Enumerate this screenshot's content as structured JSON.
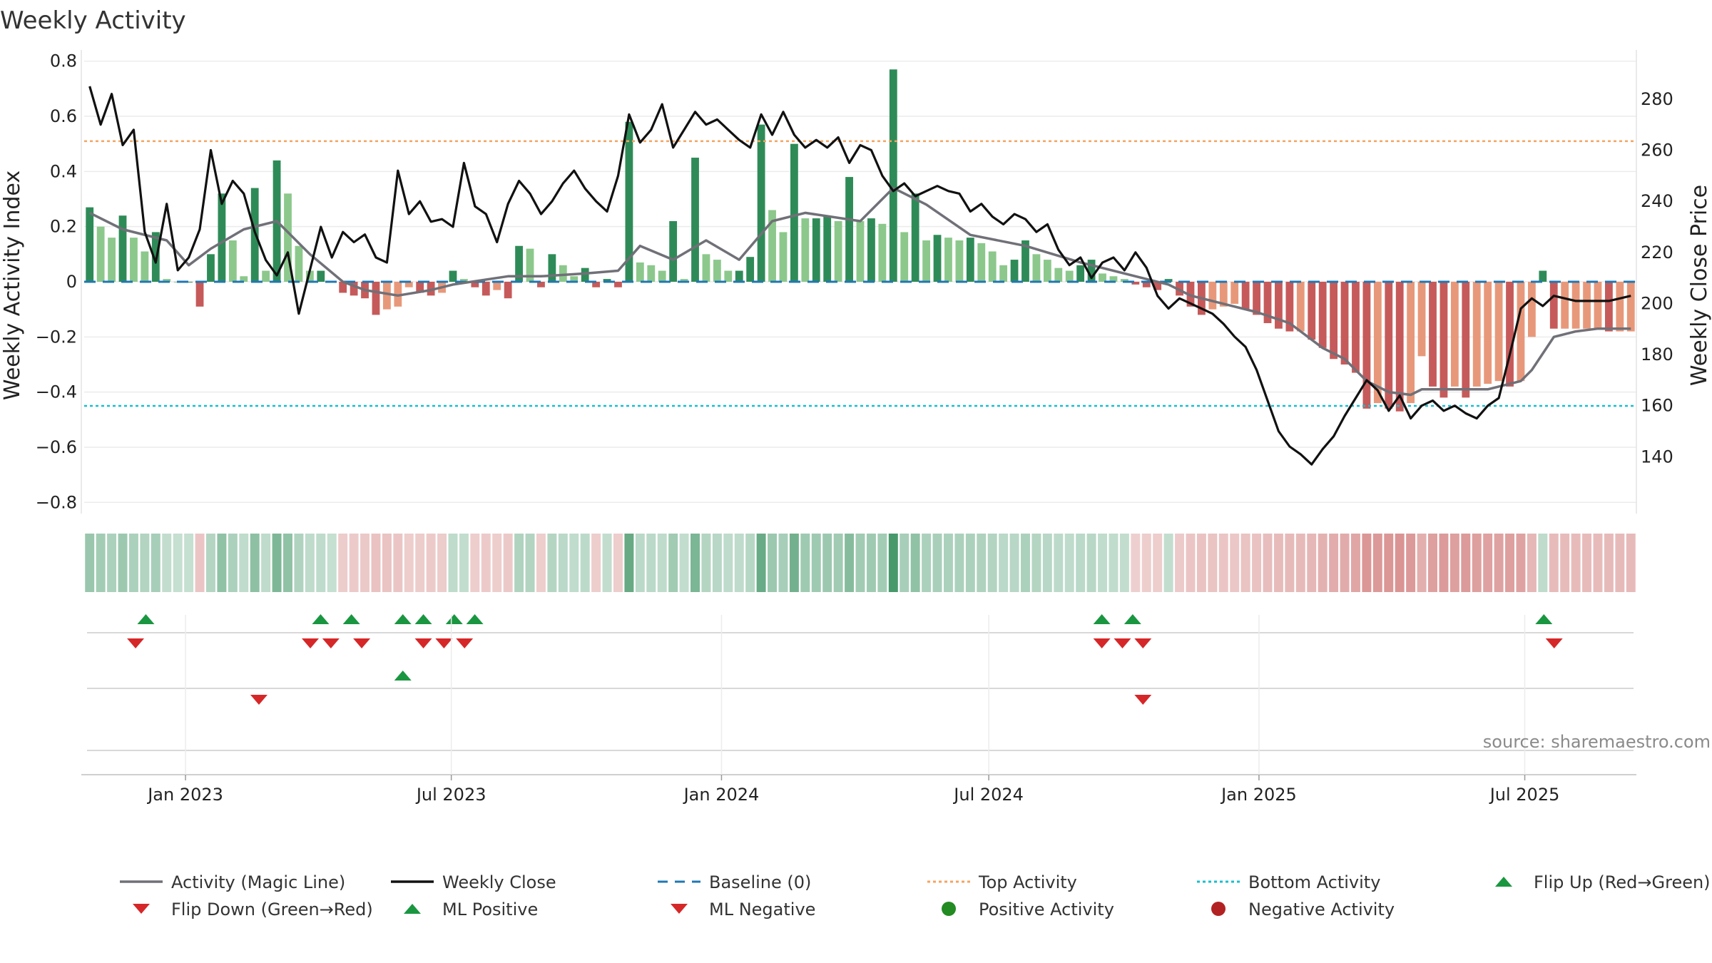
{
  "chart_data": {
    "type": "bar",
    "title": "Weekly Activity",
    "ylabel_left": "Weekly Activity Index",
    "ylabel_right": "Weekly Close Price",
    "x_range": [
      "2022-10-24",
      "2025-09-15"
    ],
    "left_ylim": [
      -0.82,
      0.82
    ],
    "left_ticks": [
      "0.8",
      "0.6",
      "0.4",
      "0.2",
      "0",
      "−0.2",
      "−0.4",
      "−0.6",
      "−0.8"
    ],
    "left_tick_values": [
      0.8,
      0.6,
      0.4,
      0.2,
      0,
      -0.2,
      -0.4,
      -0.6,
      -0.8
    ],
    "right_ylim": [
      120,
      297
    ],
    "right_ticks": [
      280,
      260,
      240,
      220,
      200,
      180,
      160,
      140
    ],
    "x_ticks": [
      {
        "label": "Jan 2023",
        "date": "2023-01-01"
      },
      {
        "label": "Jul 2023",
        "date": "2023-07-01"
      },
      {
        "label": "Jan 2024",
        "date": "2024-01-01"
      },
      {
        "label": "Jul 2024",
        "date": "2024-07-01"
      },
      {
        "label": "Jan 2025",
        "date": "2025-01-01"
      },
      {
        "label": "Jul 2025",
        "date": "2025-07-01"
      }
    ],
    "grid": true,
    "reference_lines": {
      "baseline": 0,
      "top_activity": 0.51,
      "bottom_activity": -0.45
    },
    "activity_anchors": [
      [
        0,
        0.27
      ],
      [
        1,
        0.2
      ],
      [
        2,
        0.16
      ],
      [
        3,
        0.24
      ],
      [
        4,
        0.16
      ],
      [
        5,
        0.11
      ],
      [
        6,
        0.18
      ],
      [
        7,
        0.01
      ],
      [
        8,
        0
      ],
      [
        9,
        0
      ],
      [
        10,
        -0.09
      ],
      [
        11,
        0.1
      ],
      [
        12,
        0.32
      ],
      [
        13,
        0.15
      ],
      [
        14,
        0.02
      ],
      [
        15,
        0.34
      ],
      [
        16,
        0.04
      ],
      [
        17,
        0.44
      ],
      [
        18,
        0.32
      ],
      [
        19,
        0.13
      ],
      [
        20,
        0.04
      ],
      [
        21,
        0.04
      ],
      [
        22,
        0
      ],
      [
        23,
        -0.04
      ],
      [
        24,
        -0.05
      ],
      [
        25,
        -0.06
      ],
      [
        26,
        -0.12
      ],
      [
        27,
        -0.1
      ],
      [
        28,
        -0.09
      ],
      [
        29,
        -0.02
      ],
      [
        30,
        -0.04
      ],
      [
        31,
        -0.05
      ],
      [
        32,
        -0.04
      ],
      [
        33,
        0.04
      ],
      [
        34,
        0.01
      ],
      [
        35,
        -0.02
      ],
      [
        36,
        -0.05
      ],
      [
        37,
        -0.03
      ],
      [
        38,
        -0.06
      ],
      [
        39,
        0.13
      ],
      [
        40,
        0.12
      ],
      [
        41,
        -0.02
      ],
      [
        42,
        0.1
      ],
      [
        43,
        0.06
      ],
      [
        44,
        0.02
      ],
      [
        45,
        0.05
      ],
      [
        46,
        -0.02
      ],
      [
        47,
        0.01
      ],
      [
        48,
        -0.02
      ],
      [
        49,
        0.58
      ],
      [
        50,
        0.07
      ],
      [
        51,
        0.06
      ],
      [
        52,
        0.04
      ],
      [
        53,
        0.22
      ],
      [
        54,
        0.01
      ],
      [
        55,
        0.45
      ],
      [
        56,
        0.1
      ],
      [
        57,
        0.08
      ],
      [
        58,
        0.04
      ],
      [
        59,
        0.04
      ],
      [
        60,
        0.09
      ],
      [
        61,
        0.57
      ],
      [
        62,
        0.26
      ],
      [
        63,
        0.18
      ],
      [
        64,
        0.5
      ],
      [
        65,
        0.23
      ],
      [
        66,
        0.23
      ],
      [
        67,
        0.24
      ],
      [
        68,
        0.22
      ],
      [
        69,
        0.38
      ],
      [
        70,
        0.22
      ],
      [
        71,
        0.23
      ],
      [
        72,
        0.21
      ],
      [
        73,
        0.77
      ],
      [
        74,
        0.18
      ],
      [
        75,
        0.32
      ],
      [
        76,
        0.15
      ],
      [
        77,
        0.17
      ],
      [
        78,
        0.16
      ],
      [
        79,
        0.15
      ],
      [
        80,
        0.16
      ],
      [
        81,
        0.14
      ],
      [
        82,
        0.11
      ],
      [
        83,
        0.06
      ],
      [
        84,
        0.08
      ],
      [
        85,
        0.15
      ],
      [
        86,
        0.1
      ],
      [
        87,
        0.08
      ],
      [
        88,
        0.05
      ],
      [
        89,
        0.04
      ],
      [
        90,
        0.06
      ],
      [
        91,
        0.08
      ],
      [
        92,
        0.03
      ],
      [
        93,
        0.02
      ],
      [
        94,
        0.01
      ],
      [
        95,
        -0.01
      ],
      [
        96,
        -0.02
      ],
      [
        97,
        -0.03
      ],
      [
        98,
        0.01
      ],
      [
        99,
        -0.05
      ],
      [
        100,
        -0.09
      ],
      [
        101,
        -0.12
      ],
      [
        102,
        -0.1
      ],
      [
        103,
        -0.09
      ],
      [
        104,
        -0.08
      ],
      [
        105,
        -0.1
      ],
      [
        106,
        -0.12
      ],
      [
        107,
        -0.15
      ],
      [
        108,
        -0.17
      ],
      [
        109,
        -0.18
      ],
      [
        110,
        -0.18
      ],
      [
        111,
        -0.21
      ],
      [
        112,
        -0.24
      ],
      [
        113,
        -0.28
      ],
      [
        114,
        -0.3
      ],
      [
        115,
        -0.33
      ],
      [
        116,
        -0.46
      ],
      [
        117,
        -0.44
      ],
      [
        118,
        -0.46
      ],
      [
        119,
        -0.47
      ],
      [
        120,
        -0.44
      ],
      [
        121,
        -0.27
      ],
      [
        122,
        -0.38
      ],
      [
        123,
        -0.42
      ],
      [
        124,
        -0.38
      ],
      [
        125,
        -0.42
      ],
      [
        126,
        -0.38
      ],
      [
        127,
        -0.37
      ],
      [
        128,
        -0.36
      ],
      [
        129,
        -0.38
      ],
      [
        130,
        -0.36
      ],
      [
        131,
        -0.2
      ],
      [
        132,
        0.04
      ],
      [
        133,
        -0.17
      ],
      [
        134,
        -0.17
      ],
      [
        135,
        -0.17
      ],
      [
        136,
        -0.17
      ],
      [
        137,
        -0.17
      ],
      [
        138,
        -0.18
      ],
      [
        139,
        -0.18
      ],
      [
        140,
        -0.18
      ]
    ],
    "magic_line_anchors": [
      [
        0,
        0.25
      ],
      [
        3,
        0.19
      ],
      [
        7,
        0.15
      ],
      [
        9,
        0.06
      ],
      [
        11,
        0.12
      ],
      [
        14,
        0.19
      ],
      [
        17,
        0.22
      ],
      [
        20,
        0.1
      ],
      [
        23,
        0
      ],
      [
        25,
        -0.03
      ],
      [
        28,
        -0.05
      ],
      [
        31,
        -0.03
      ],
      [
        33,
        -0.01
      ],
      [
        38,
        0.02
      ],
      [
        41,
        0.02
      ],
      [
        45,
        0.03
      ],
      [
        48,
        0.04
      ],
      [
        50,
        0.13
      ],
      [
        53,
        0.08
      ],
      [
        56,
        0.15
      ],
      [
        59,
        0.08
      ],
      [
        62,
        0.22
      ],
      [
        65,
        0.25
      ],
      [
        70,
        0.22
      ],
      [
        73,
        0.34
      ],
      [
        76,
        0.28
      ],
      [
        80,
        0.17
      ],
      [
        85,
        0.13
      ],
      [
        90,
        0.07
      ],
      [
        95,
        0.02
      ],
      [
        98,
        -0.01
      ],
      [
        100,
        -0.05
      ],
      [
        103,
        -0.08
      ],
      [
        106,
        -0.11
      ],
      [
        109,
        -0.15
      ],
      [
        112,
        -0.24
      ],
      [
        114,
        -0.28
      ],
      [
        116,
        -0.36
      ],
      [
        118,
        -0.4
      ],
      [
        120,
        -0.41
      ],
      [
        121,
        -0.39
      ],
      [
        124,
        -0.39
      ],
      [
        127,
        -0.39
      ],
      [
        130,
        -0.36
      ],
      [
        131,
        -0.32
      ],
      [
        133,
        -0.2
      ],
      [
        135,
        -0.18
      ],
      [
        137,
        -0.17
      ],
      [
        140,
        -0.17
      ]
    ],
    "close_anchors": [
      [
        0,
        285
      ],
      [
        1,
        270
      ],
      [
        2,
        282
      ],
      [
        3,
        262
      ],
      [
        4,
        268
      ],
      [
        5,
        228
      ],
      [
        6,
        216
      ],
      [
        7,
        239
      ],
      [
        8,
        213
      ],
      [
        9,
        218
      ],
      [
        10,
        229
      ],
      [
        11,
        260
      ],
      [
        12,
        239
      ],
      [
        13,
        248
      ],
      [
        14,
        243
      ],
      [
        15,
        228
      ],
      [
        16,
        217
      ],
      [
        17,
        211
      ],
      [
        18,
        220
      ],
      [
        19,
        196
      ],
      [
        20,
        213
      ],
      [
        21,
        230
      ],
      [
        22,
        218
      ],
      [
        23,
        228
      ],
      [
        24,
        224
      ],
      [
        25,
        227
      ],
      [
        26,
        218
      ],
      [
        27,
        216
      ],
      [
        28,
        252
      ],
      [
        29,
        235
      ],
      [
        30,
        240
      ],
      [
        31,
        232
      ],
      [
        32,
        233
      ],
      [
        33,
        230
      ],
      [
        34,
        255
      ],
      [
        35,
        238
      ],
      [
        36,
        235
      ],
      [
        37,
        224
      ],
      [
        38,
        239
      ],
      [
        39,
        248
      ],
      [
        40,
        243
      ],
      [
        41,
        235
      ],
      [
        42,
        240
      ],
      [
        43,
        247
      ],
      [
        44,
        252
      ],
      [
        45,
        245
      ],
      [
        46,
        240
      ],
      [
        47,
        236
      ],
      [
        48,
        250
      ],
      [
        49,
        274
      ],
      [
        50,
        263
      ],
      [
        51,
        268
      ],
      [
        52,
        278
      ],
      [
        53,
        261
      ],
      [
        54,
        268
      ],
      [
        55,
        275
      ],
      [
        56,
        270
      ],
      [
        57,
        272
      ],
      [
        58,
        268
      ],
      [
        59,
        264
      ],
      [
        60,
        261
      ],
      [
        61,
        274
      ],
      [
        62,
        266
      ],
      [
        63,
        275
      ],
      [
        64,
        266
      ],
      [
        65,
        261
      ],
      [
        66,
        264
      ],
      [
        67,
        261
      ],
      [
        68,
        265
      ],
      [
        69,
        255
      ],
      [
        70,
        262
      ],
      [
        71,
        260
      ],
      [
        72,
        250
      ],
      [
        73,
        244
      ],
      [
        74,
        247
      ],
      [
        75,
        242
      ],
      [
        76,
        244
      ],
      [
        77,
        246
      ],
      [
        78,
        244
      ],
      [
        79,
        243
      ],
      [
        80,
        236
      ],
      [
        81,
        239
      ],
      [
        82,
        234
      ],
      [
        83,
        231
      ],
      [
        84,
        235
      ],
      [
        85,
        233
      ],
      [
        86,
        228
      ],
      [
        87,
        231
      ],
      [
        88,
        221
      ],
      [
        89,
        215
      ],
      [
        90,
        218
      ],
      [
        91,
        210
      ],
      [
        92,
        216
      ],
      [
        93,
        218
      ],
      [
        94,
        213
      ],
      [
        95,
        220
      ],
      [
        96,
        214
      ],
      [
        97,
        203
      ],
      [
        98,
        198
      ],
      [
        99,
        202
      ],
      [
        100,
        200
      ],
      [
        101,
        198
      ],
      [
        102,
        196
      ],
      [
        103,
        192
      ],
      [
        104,
        187
      ],
      [
        105,
        183
      ],
      [
        106,
        174
      ],
      [
        107,
        162
      ],
      [
        108,
        150
      ],
      [
        109,
        144
      ],
      [
        110,
        141
      ],
      [
        111,
        137
      ],
      [
        112,
        143
      ],
      [
        113,
        148
      ],
      [
        114,
        156
      ],
      [
        115,
        163
      ],
      [
        116,
        170
      ],
      [
        117,
        166
      ],
      [
        118,
        158
      ],
      [
        119,
        164
      ],
      [
        120,
        155
      ],
      [
        121,
        160
      ],
      [
        122,
        162
      ],
      [
        123,
        158
      ],
      [
        124,
        160
      ],
      [
        125,
        157
      ],
      [
        126,
        155
      ],
      [
        127,
        160
      ],
      [
        128,
        163
      ],
      [
        129,
        180
      ],
      [
        130,
        198
      ],
      [
        131,
        202
      ],
      [
        132,
        199
      ],
      [
        133,
        203
      ],
      [
        134,
        202
      ],
      [
        135,
        201
      ],
      [
        136,
        201
      ],
      [
        137,
        201
      ],
      [
        138,
        201
      ],
      [
        139,
        202
      ],
      [
        140,
        203
      ]
    ],
    "flip_row1_up": [
      "2022-12-05",
      "2023-04-03",
      "2023-04-24",
      "2023-05-29",
      "2023-06-12",
      "2023-07-03",
      "2023-07-17",
      "2024-09-16",
      "2024-10-07",
      "2025-07-14"
    ],
    "flip_row1_down": [
      "2022-11-28",
      "2023-03-27",
      "2023-04-10",
      "2023-05-01",
      "2023-06-12",
      "2023-06-26",
      "2023-07-10",
      "2024-09-16",
      "2024-09-30",
      "2024-10-14",
      "2025-07-21"
    ],
    "flip_row2_up": [
      "2023-05-29"
    ],
    "flip_row2_down": [
      "2023-02-20",
      "2024-10-14"
    ],
    "colors": {
      "green_dark": "#2e8b57",
      "green_light": "#8cc88c",
      "red_dark": "#c65a5a",
      "red_light": "#e8987a",
      "magic_line": "#707078",
      "close_line": "#111111",
      "baseline": "#1f77b4",
      "top_activity": "#f4a460",
      "bottom_activity": "#17becf",
      "flip_up": "#1a9641",
      "flip_down": "#d62728",
      "positive": "#228b22",
      "negative": "#b22222"
    },
    "legend": [
      {
        "label": "Activity (Magic Line)",
        "kind": "line",
        "color": "#707078"
      },
      {
        "label": "Weekly Close",
        "kind": "line",
        "color": "#111111"
      },
      {
        "label": "Baseline (0)",
        "kind": "dash",
        "color": "#1f77b4"
      },
      {
        "label": "Top Activity",
        "kind": "dot",
        "color": "#f4a460"
      },
      {
        "label": "Bottom Activity",
        "kind": "dot",
        "color": "#17becf"
      },
      {
        "label": "Flip Up (Red→Green)",
        "kind": "tri-up",
        "color": "#1a9641"
      },
      {
        "label": "Flip Down (Green→Red)",
        "kind": "tri-down",
        "color": "#d62728"
      },
      {
        "label": "ML Positive",
        "kind": "tri-up",
        "color": "#1a9641"
      },
      {
        "label": "ML Negative",
        "kind": "tri-down",
        "color": "#d62728"
      },
      {
        "label": "Positive Activity",
        "kind": "circle",
        "color": "#228b22"
      },
      {
        "label": "Negative Activity",
        "kind": "circle",
        "color": "#b22222"
      }
    ],
    "legend_placement": "bottom",
    "source": "source: sharemaestro.com"
  }
}
